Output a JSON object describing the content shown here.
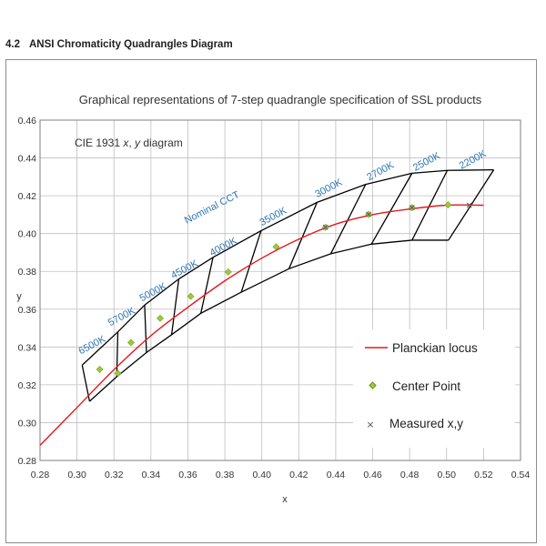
{
  "section": {
    "number": "4.2",
    "title": "ANSI Chromaticity Quadrangles Diagram"
  },
  "chart_data": {
    "type": "line",
    "title": "Graphical  representations of 7-step quadrangle specification of SSL products",
    "inset_label_prefix": "CIE 1931 ",
    "inset_label_x": "x",
    "inset_label_sep": ", ",
    "inset_label_y": "y",
    "inset_label_suffix": " diagram",
    "xlabel": "x",
    "ylabel": "y",
    "xlim": [
      0.28,
      0.54
    ],
    "ylim": [
      0.28,
      0.46
    ],
    "xticks": [
      0.28,
      0.3,
      0.32,
      0.34,
      0.36,
      0.38,
      0.4,
      0.42,
      0.44,
      0.46,
      0.48,
      0.5,
      0.52,
      0.54
    ],
    "yticks": [
      0.28,
      0.3,
      0.32,
      0.34,
      0.36,
      0.38,
      0.4,
      0.42,
      0.44,
      0.46
    ],
    "xtick_labels": [
      "0.28",
      "0.30",
      "0.32",
      "0.34",
      "0.36",
      "0.38",
      "0.40",
      "0.42",
      "0.44",
      "0.46",
      "0.48",
      "0.50",
      "0.52",
      "0.54"
    ],
    "ytick_labels": [
      "0.28",
      "0.30",
      "0.32",
      "0.34",
      "0.36",
      "0.38",
      "0.40",
      "0.42",
      "0.44",
      "0.46"
    ],
    "grid": true,
    "legend_position": "bottom-right",
    "colors": {
      "planckian": "#e8161b",
      "center": "#9acd32",
      "center_stroke": "#6b8e23",
      "measured": "#555555",
      "quad": "#000000",
      "cct_label": "#2e75b6",
      "grid": "#bfbfbf"
    },
    "nominal_cct_label": "Nominal CCT",
    "series": [
      {
        "name": "Planckian locus",
        "type": "line",
        "x": [
          0.28,
          0.3,
          0.32,
          0.34,
          0.36,
          0.38,
          0.4,
          0.42,
          0.44,
          0.46,
          0.48,
          0.5,
          0.52
        ],
        "y": [
          0.288,
          0.308,
          0.328,
          0.346,
          0.361,
          0.375,
          0.387,
          0.397,
          0.405,
          0.41,
          0.413,
          0.415,
          0.415
        ]
      },
      {
        "name": "Center Point",
        "type": "scatter",
        "x": [
          0.3123,
          0.3221,
          0.3292,
          0.345,
          0.3615,
          0.3818,
          0.4078,
          0.4345,
          0.4578,
          0.4813,
          0.5008
        ],
        "y": [
          0.3282,
          0.3261,
          0.3424,
          0.3552,
          0.3668,
          0.3797,
          0.393,
          0.4033,
          0.4101,
          0.4137,
          0.4152
        ]
      },
      {
        "name": "Measured x,y",
        "type": "scatter",
        "x": [
          0.4345,
          0.4578,
          0.4813,
          0.5123
        ],
        "y": [
          0.4033,
          0.4101,
          0.4137,
          0.415
        ]
      }
    ],
    "quadrangles": {
      "upper": [
        [
          0.3028,
          0.3304
        ],
        [
          0.3221,
          0.348
        ],
        [
          0.3366,
          0.3622
        ],
        [
          0.3551,
          0.376
        ],
        [
          0.3736,
          0.3874
        ],
        [
          0.3996,
          0.4015
        ],
        [
          0.4299,
          0.4165
        ],
        [
          0.4562,
          0.426
        ],
        [
          0.4813,
          0.4319
        ],
        [
          0.5004,
          0.4334
        ],
        [
          0.5255,
          0.4337
        ]
      ],
      "lower": [
        [
          0.3068,
          0.3113
        ],
        [
          0.3215,
          0.3243
        ],
        [
          0.3376,
          0.3371
        ],
        [
          0.3512,
          0.3465
        ],
        [
          0.367,
          0.3578
        ],
        [
          0.3889,
          0.369
        ],
        [
          0.4147,
          0.3814
        ],
        [
          0.4373,
          0.3893
        ],
        [
          0.4593,
          0.3944
        ],
        [
          0.4813,
          0.3965
        ],
        [
          0.501,
          0.3965
        ]
      ]
    },
    "cct_labels": [
      "6500K",
      "5700K",
      "5000K",
      "4500K",
      "4000K",
      "3500K",
      "3000K",
      "2700K",
      "2500K",
      "2200K"
    ],
    "cct_label_anchors": [
      [
        0.302,
        0.336
      ],
      [
        0.318,
        0.351
      ],
      [
        0.335,
        0.364
      ],
      [
        0.352,
        0.376
      ],
      [
        0.373,
        0.388
      ],
      [
        0.4,
        0.404
      ],
      [
        0.43,
        0.419
      ],
      [
        0.458,
        0.428
      ],
      [
        0.483,
        0.433
      ],
      [
        0.508,
        0.434
      ]
    ]
  }
}
